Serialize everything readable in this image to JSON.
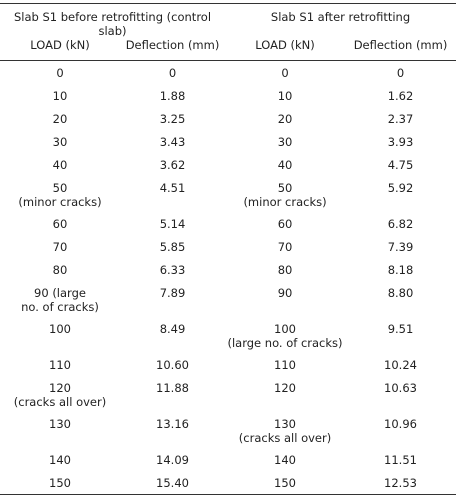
{
  "table": {
    "groups": [
      "Slab S1 before retrofitting (control slab)",
      "Slab S1 after retrofitting"
    ],
    "columns": [
      "LOAD (kN)",
      "Deflection (mm)",
      "LOAD (kN)",
      "Deflection (mm)"
    ],
    "rows": [
      [
        "0",
        "0",
        "0",
        "0"
      ],
      [
        "10",
        "1.88",
        "10",
        "1.62"
      ],
      [
        "20",
        "3.25",
        "20",
        "2.37"
      ],
      [
        "30",
        "3.43",
        "30",
        "3.93"
      ],
      [
        "40",
        "3.62",
        "40",
        "4.75"
      ],
      [
        "50\n(minor cracks)",
        "4.51",
        "50\n(minor cracks)",
        "5.92"
      ],
      [
        "60",
        "5.14",
        "60",
        "6.82"
      ],
      [
        "70",
        "5.85",
        "70",
        "7.39"
      ],
      [
        "80",
        "6.33",
        "80",
        "8.18"
      ],
      [
        "90 (large\nno. of cracks)",
        "7.89",
        "90",
        "8.80"
      ],
      [
        "100",
        "8.49",
        "100\n(large no. of cracks)",
        "9.51"
      ],
      [
        "110",
        "10.60",
        "110",
        "10.24"
      ],
      [
        "120\n(cracks all over)",
        "11.88",
        "120",
        "10.63"
      ],
      [
        "130",
        "13.16",
        "130\n(cracks all over)",
        "10.96"
      ],
      [
        "140",
        "14.09",
        "140",
        "11.51"
      ],
      [
        "150",
        "15.40",
        "150",
        "12.53"
      ]
    ]
  }
}
